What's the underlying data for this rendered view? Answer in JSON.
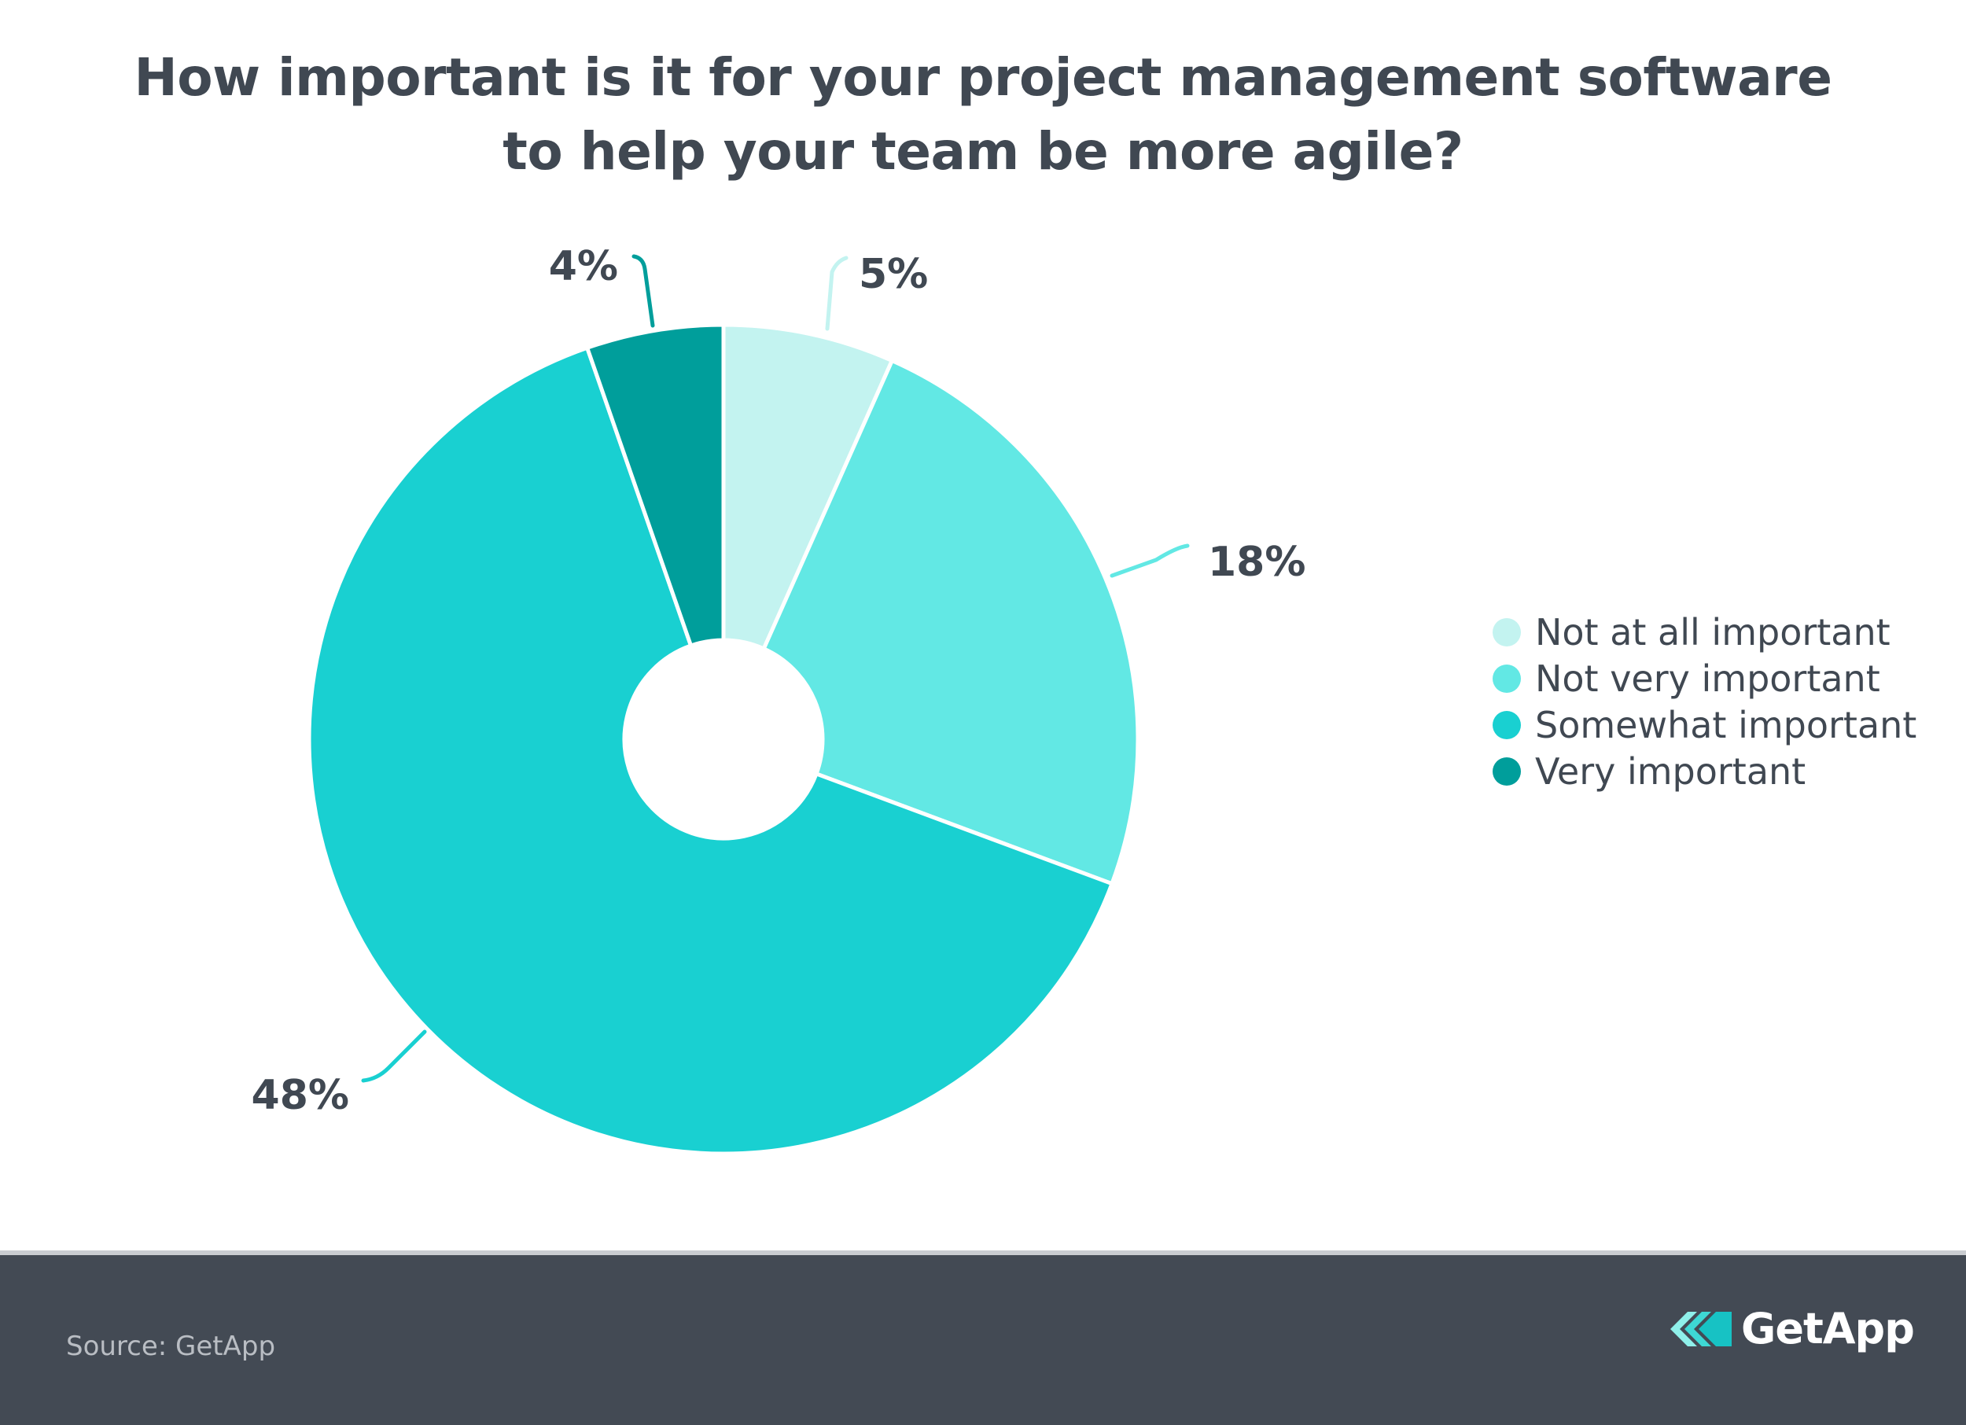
{
  "chart_data": {
    "type": "pie",
    "title_lines": [
      "How important is it for your project management software",
      "to help your team be more agile?"
    ],
    "categories": [
      "Not at all important",
      "Not very important",
      "Somewhat important",
      "Very important"
    ],
    "values": [
      5,
      18,
      48,
      4
    ],
    "labels": [
      "5%",
      "18%",
      "48%",
      "4%"
    ],
    "colors": [
      "#c3f3f0",
      "#62e8e4",
      "#19d0d1",
      "#009e9b"
    ],
    "legend_position": "right"
  },
  "footer": {
    "source": "Source: GetApp",
    "brand": "GetApp",
    "brand_icon": "getapp-logo-icon"
  }
}
